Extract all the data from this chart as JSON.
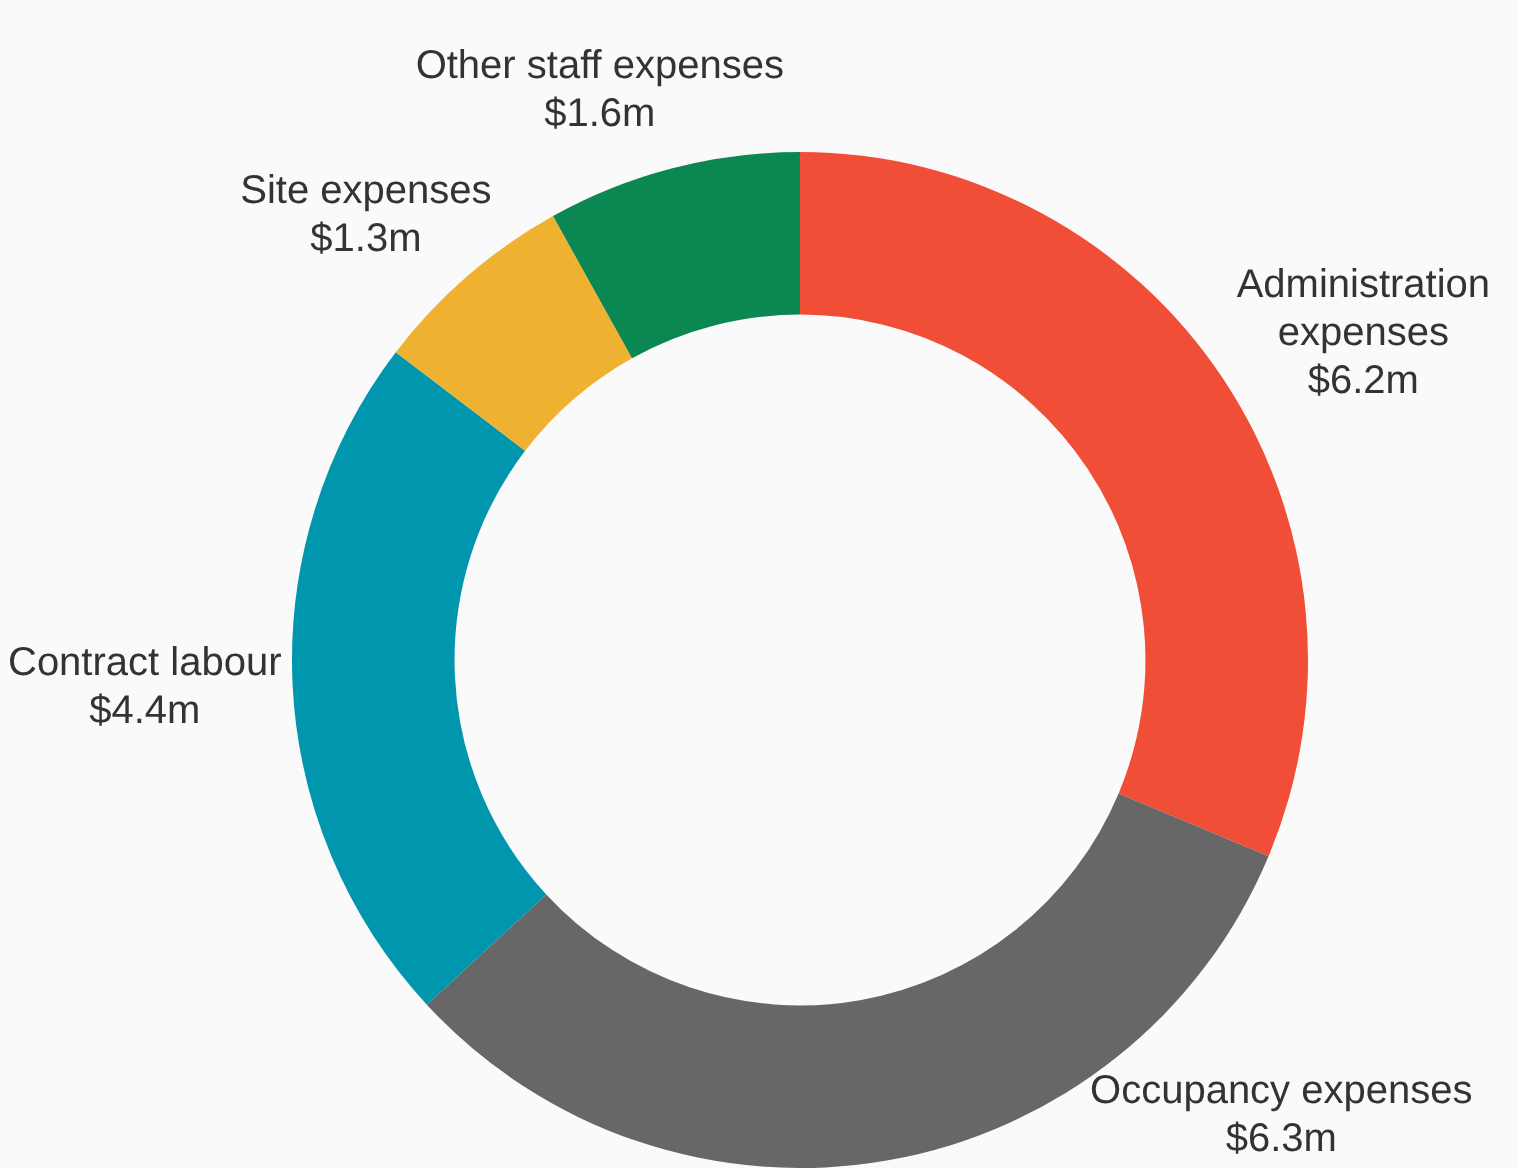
{
  "chart_data": {
    "type": "donut",
    "categories": [
      "Administration expenses",
      "Occupancy expenses",
      "Contract labour",
      "Site expenses",
      "Other staff expenses"
    ],
    "values": [
      6.2,
      6.3,
      4.4,
      1.3,
      1.6
    ],
    "value_labels": [
      "$6.2m",
      "$6.3m",
      "$4.4m",
      "$1.3m",
      "$1.6m"
    ],
    "colors": [
      "#f04e37",
      "#676767",
      "#0096ae",
      "#eeb130",
      "#0b8752"
    ],
    "legend": false
  }
}
